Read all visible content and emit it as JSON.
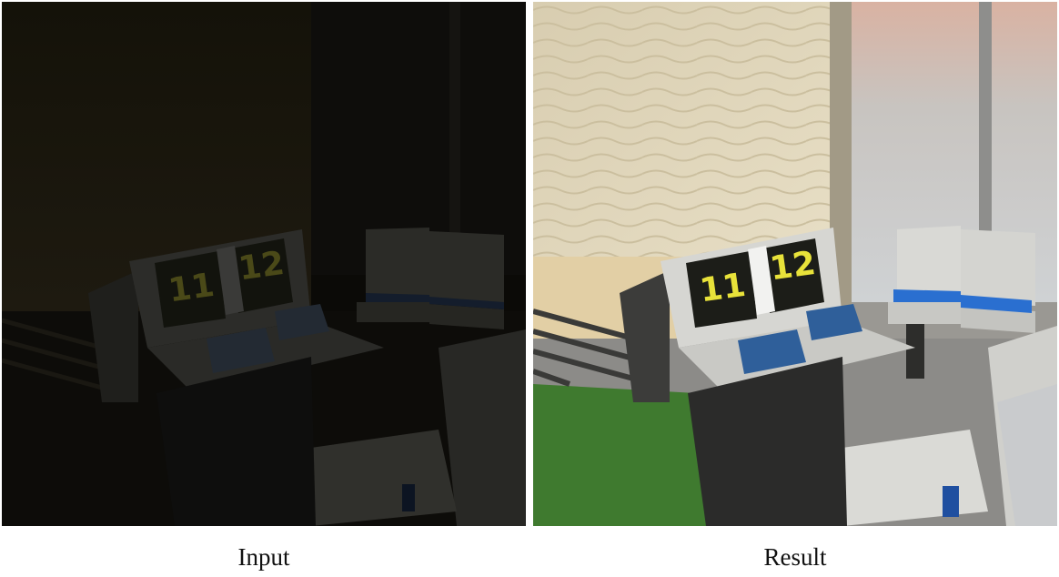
{
  "figure": {
    "panels": [
      {
        "caption": "Input",
        "lighting": "dark",
        "kiosk_numbers": [
          "11",
          "12"
        ]
      },
      {
        "caption": "Result",
        "lighting": "enhanced",
        "kiosk_numbers": [
          "11",
          "12"
        ]
      }
    ],
    "colors": {
      "number_yellow": "#e8e23a",
      "seat_blue": "#2a6fd0",
      "turf_green": "#3f7a2f"
    }
  }
}
